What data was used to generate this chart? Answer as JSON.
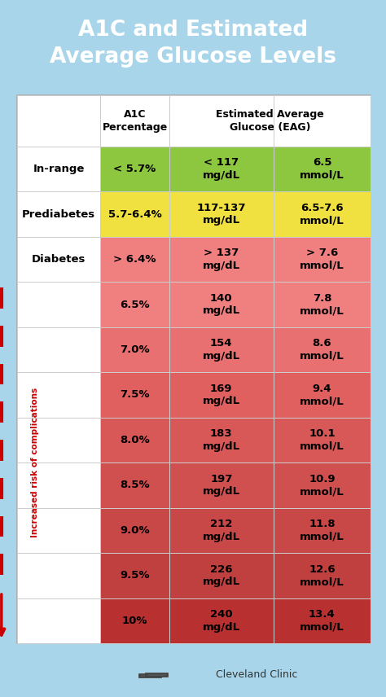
{
  "title": "A1C and Estimated\nAverage Glucose Levels",
  "title_color": "#FFFFFF",
  "title_bg": "#1A9FD4",
  "bg_color": "#A8D5EA",
  "table_bg": "#FFFFFF",
  "rows": [
    {
      "label": "In-range",
      "label_bold": true,
      "a1c": "< 5.7%",
      "mgdl": "< 117\nmg/dL",
      "mmol": "6.5\nmmol/L",
      "color": "#8DC63F",
      "label_bg": "#FFFFFF"
    },
    {
      "label": "Prediabetes",
      "label_bold": true,
      "a1c": "5.7-6.4%",
      "mgdl": "117-137\nmg/dL",
      "mmol": "6.5-7.6\nmmol/L",
      "color": "#F0E040",
      "label_bg": "#FFFFFF"
    },
    {
      "label": "Diabetes",
      "label_bold": true,
      "a1c": "> 6.4%",
      "mgdl": "> 137\nmg/dL",
      "mmol": "> 7.6\nmmol/L",
      "color": "#F08080",
      "label_bg": "#FFFFFF"
    },
    {
      "label": "",
      "label_bold": false,
      "a1c": "6.5%",
      "mgdl": "140\nmg/dL",
      "mmol": "7.8\nmmol/L",
      "color": "#F08080",
      "label_bg": "#FFFFFF"
    },
    {
      "label": "",
      "label_bold": false,
      "a1c": "7.0%",
      "mgdl": "154\nmg/dL",
      "mmol": "8.6\nmmol/L",
      "color": "#E87070",
      "label_bg": "#FFFFFF"
    },
    {
      "label": "",
      "label_bold": false,
      "a1c": "7.5%",
      "mgdl": "169\nmg/dL",
      "mmol": "9.4\nmmol/L",
      "color": "#E06060",
      "label_bg": "#FFFFFF"
    },
    {
      "label": "",
      "label_bold": false,
      "a1c": "8.0%",
      "mgdl": "183\nmg/dL",
      "mmol": "10.1\nmmol/L",
      "color": "#D85858",
      "label_bg": "#FFFFFF"
    },
    {
      "label": "",
      "label_bold": false,
      "a1c": "8.5%",
      "mgdl": "197\nmg/dL",
      "mmol": "10.9\nmmol/L",
      "color": "#D05050",
      "label_bg": "#FFFFFF"
    },
    {
      "label": "",
      "label_bold": false,
      "a1c": "9.0%",
      "mgdl": "212\nmg/dL",
      "mmol": "11.8\nmmol/L",
      "color": "#C84848",
      "label_bg": "#FFFFFF"
    },
    {
      "label": "",
      "label_bold": false,
      "a1c": "9.5%",
      "mgdl": "226\nmg/dL",
      "mmol": "12.6\nmmol/L",
      "color": "#C04040",
      "label_bg": "#FFFFFF"
    },
    {
      "label": "",
      "label_bold": false,
      "a1c": "10%",
      "mgdl": "240\nmg/dL",
      "mmol": "13.4\nmmol/L",
      "color": "#B83030",
      "label_bg": "#FFFFFF"
    }
  ],
  "risk_text": "Increased risk of complications",
  "risk_color": "#CC0000",
  "cleveland_clinic_text": "Cleveland Clinic",
  "border_color": "#AAAAAA",
  "grid_color": "#CCCCCC"
}
